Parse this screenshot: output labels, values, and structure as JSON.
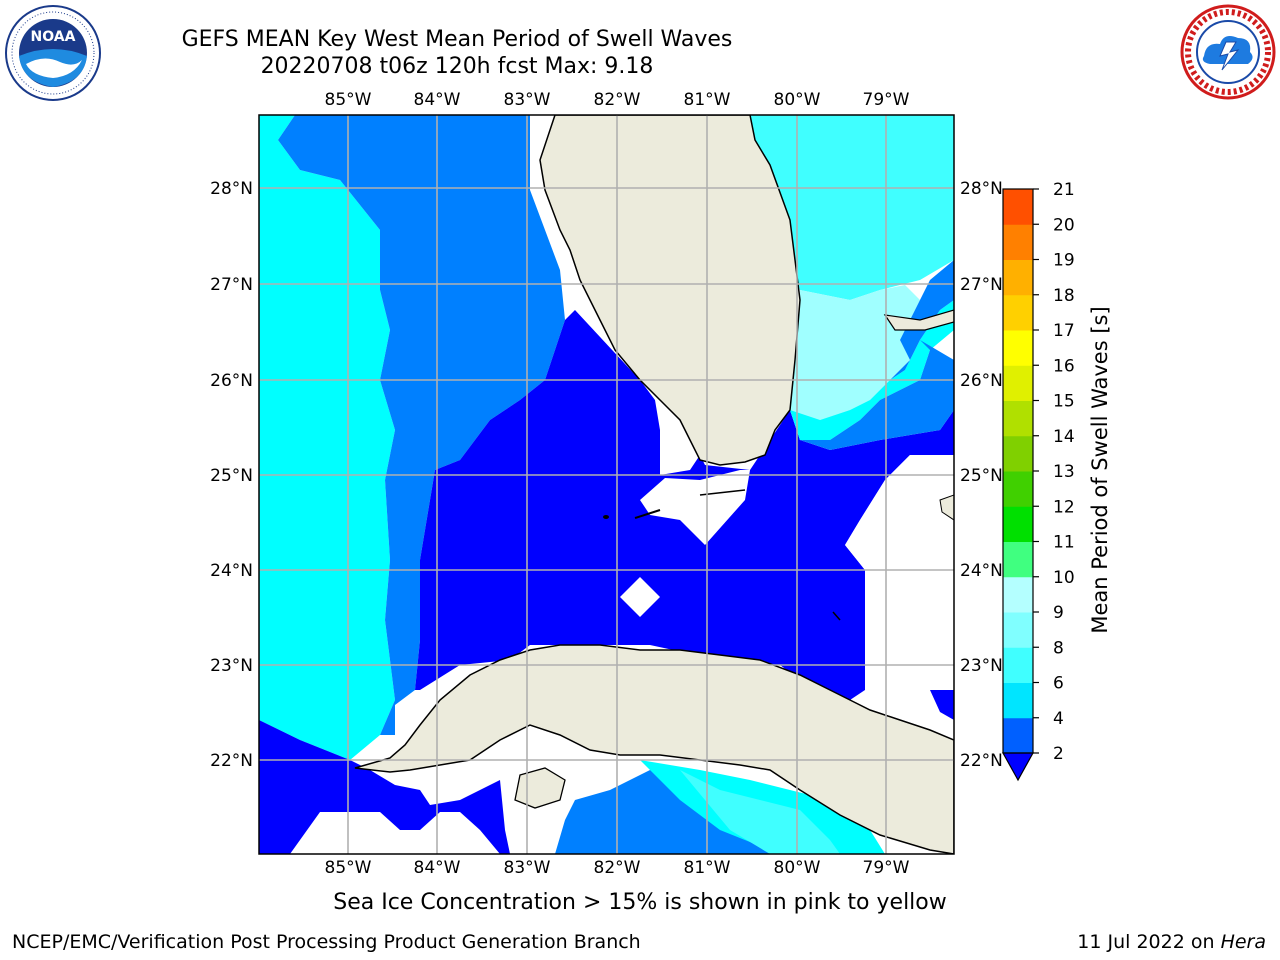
{
  "header": {
    "title_line1": "GEFS MEAN Key West Mean Period of Swell Waves",
    "title_line2": "20220708 t06z 120h fcst   Max: 9.18"
  },
  "logos": {
    "left": {
      "icon": "noaa-logo-icon",
      "text": "NOAA",
      "ring_text": "NATIONAL OCEANIC AND ATMOSPHERIC ADMINISTRATION · U.S. DEPARTMENT OF COMMERCE"
    },
    "right": {
      "icon": "nws-logo-icon",
      "ring_text": "NATIONAL WEATHER SERVICE"
    }
  },
  "map": {
    "lon_labels": [
      "85°W",
      "84°W",
      "83°W",
      "82°W",
      "81°W",
      "80°W",
      "79°W"
    ],
    "lat_labels": [
      "28°N",
      "27°N",
      "26°N",
      "25°N",
      "24°N",
      "23°N",
      "22°N"
    ],
    "colors": {
      "land": "#ecebdc",
      "water_white": "#ffffff",
      "grid": "#b0b0b0"
    }
  },
  "colorbar": {
    "label": "Mean Period of Swell Waves [s]",
    "ticks": [
      "2",
      "4",
      "6",
      "8",
      "9",
      "10",
      "11",
      "12",
      "13",
      "14",
      "15",
      "16",
      "17",
      "18",
      "19",
      "20",
      "21"
    ],
    "colors": [
      "#0060ff",
      "#00e5ff",
      "#40ffff",
      "#80ffff",
      "#b4ffff",
      "#40ff80",
      "#00e000",
      "#40d000",
      "#80d000",
      "#b0e000",
      "#e0f000",
      "#ffff00",
      "#ffd000",
      "#ffb000",
      "#ff8000",
      "#ff5000",
      "#ff2000",
      "#ff0000"
    ],
    "under_color": "#0000ff"
  },
  "footer": {
    "note": "Sea Ice Concentration > 15% is shown in pink to yellow",
    "credit": "NCEP/EMC/Verification Post Processing Product Generation Branch",
    "date": "11 Jul 2022 on ",
    "machine": "Hera"
  }
}
